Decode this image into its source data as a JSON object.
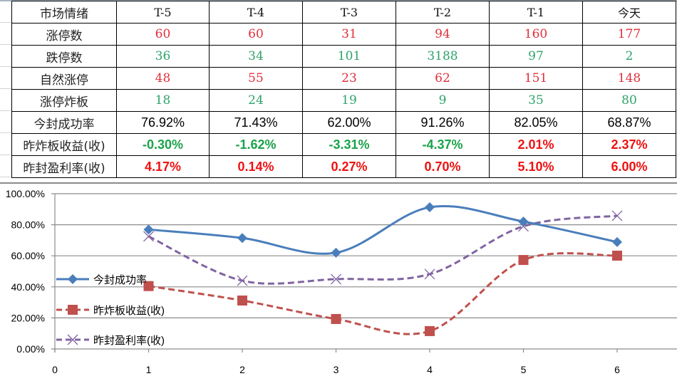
{
  "table": {
    "header": [
      "市场情绪",
      "T-5",
      "T-4",
      "T-3",
      "T-2",
      "T-1",
      "今天"
    ],
    "rows": [
      {
        "label": "涨停数",
        "values": [
          "60",
          "60",
          "31",
          "94",
          "160",
          "177"
        ],
        "style": "red"
      },
      {
        "label": "跌停数",
        "values": [
          "36",
          "34",
          "101",
          "3188",
          "97",
          "2"
        ],
        "style": "green"
      },
      {
        "label": "自然涨停",
        "values": [
          "48",
          "55",
          "23",
          "62",
          "151",
          "148"
        ],
        "style": "red"
      },
      {
        "label": "涨停炸板",
        "values": [
          "18",
          "24",
          "19",
          "9",
          "35",
          "80"
        ],
        "style": "green"
      },
      {
        "label": "今封成功率",
        "values": [
          "76.92%",
          "71.43%",
          "62.00%",
          "91.26%",
          "82.05%",
          "68.87%"
        ],
        "style": "plain"
      },
      {
        "label": "昨炸板收益(收)",
        "values": [
          "-0.30%",
          "-1.62%",
          "-3.31%",
          "-4.37%",
          "2.01%",
          "2.37%"
        ],
        "styles": [
          "bgreen",
          "bgreen",
          "bgreen",
          "bgreen",
          "bred",
          "bred"
        ]
      },
      {
        "label": "昨封盈利率(收)",
        "values": [
          "4.17%",
          "0.14%",
          "0.27%",
          "0.70%",
          "5.10%",
          "6.00%"
        ],
        "style": "bred"
      }
    ]
  },
  "colors": {
    "up_red": "#e0303c",
    "down_green": "#2ea36a",
    "bold_green": "#1aa34a",
    "bold_red": "#ee1111",
    "series_blue": "#4a7ebb",
    "series_red": "#c0504d",
    "series_purple": "#8064a2",
    "gridline": "#8c8c8c"
  },
  "chart_data": {
    "type": "line",
    "title": "",
    "xlabel": "",
    "ylabel": "",
    "x": [
      1,
      2,
      3,
      4,
      5,
      6
    ],
    "x_ticks": [
      "0",
      "1",
      "2",
      "3",
      "4",
      "5",
      "6"
    ],
    "xlim": [
      0,
      6.6
    ],
    "y_ticks": [
      "0.00%",
      "20.00%",
      "40.00%",
      "60.00%",
      "80.00%",
      "100.00%"
    ],
    "ylim": [
      0,
      1.0
    ],
    "grid": true,
    "legend_position": "left-inside",
    "smoothed": true,
    "series": [
      {
        "name": "今封成功率",
        "values": [
          0.7692,
          0.7143,
          0.62,
          0.9126,
          0.8205,
          0.6887
        ],
        "marker": "diamond",
        "line": "solid",
        "color": "#4a7ebb"
      },
      {
        "name": "昨炸板收益(收)",
        "values": [
          0.405,
          0.312,
          0.193,
          0.115,
          0.573,
          0.601
        ],
        "marker": "square",
        "line": "dashed",
        "color": "#c0504d"
      },
      {
        "name": "昨封盈利率(收)",
        "values": [
          0.725,
          0.44,
          0.45,
          0.482,
          0.79,
          0.858
        ],
        "marker": "x",
        "line": "dashed",
        "color": "#8064a2"
      }
    ]
  }
}
